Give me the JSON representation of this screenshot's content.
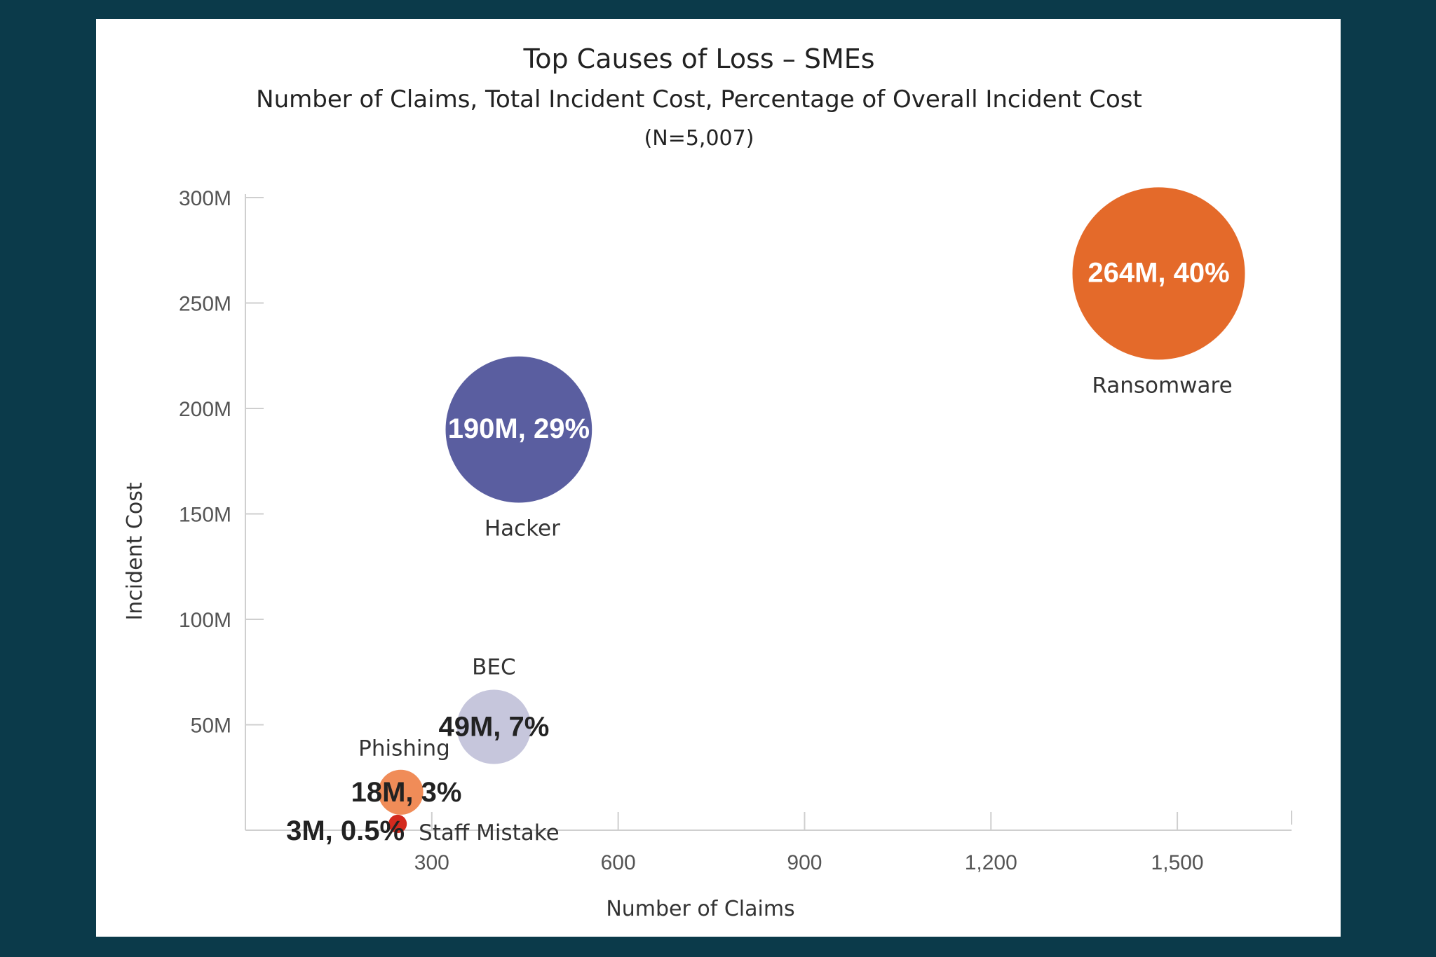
{
  "chart_data": {
    "type": "scatter",
    "title": "Top Causes of Loss – SMEs",
    "subtitle": "Number of Claims, Total Incident Cost, Percentage of Overall Incident Cost",
    "note": "(N=5,007)",
    "xlabel": "Number of Claims",
    "ylabel": "Incident Cost",
    "xlim": [
      0,
      1650
    ],
    "ylim": [
      0,
      300
    ],
    "x_ticks": [
      300,
      600,
      900,
      1200,
      1500
    ],
    "x_tick_labels": [
      "300",
      "600",
      "900",
      "1,200",
      "1,500"
    ],
    "y_ticks": [
      50,
      100,
      150,
      200,
      250,
      300
    ],
    "y_tick_labels": [
      "50M",
      "100M",
      "150M",
      "200M",
      "250M",
      "300M"
    ],
    "grid": false,
    "points": [
      {
        "name": "Ransomware",
        "claims": 1470,
        "cost": 264,
        "pct": 40,
        "label": "264M, 40%",
        "color": "#e46a2a",
        "text_color": "#ffffff"
      },
      {
        "name": "Hacker",
        "claims": 440,
        "cost": 190,
        "pct": 29,
        "label": "190M, 29%",
        "color": "#5a5ea0",
        "text_color": "#ffffff"
      },
      {
        "name": "BEC",
        "claims": 400,
        "cost": 49,
        "pct": 7,
        "label": "49M, 7%",
        "color": "#c6c6dc",
        "text_color": "#222222"
      },
      {
        "name": "Phishing",
        "claims": 250,
        "cost": 18,
        "pct": 3,
        "label": "18M, 3%",
        "color": "#f08c58",
        "text_color": "#222222"
      },
      {
        "name": "Staff Mistake",
        "claims": 245,
        "cost": 3,
        "pct": 0.5,
        "label": "3M, 0.5%",
        "color": "#d42a1e",
        "text_color": "#222222"
      }
    ]
  }
}
